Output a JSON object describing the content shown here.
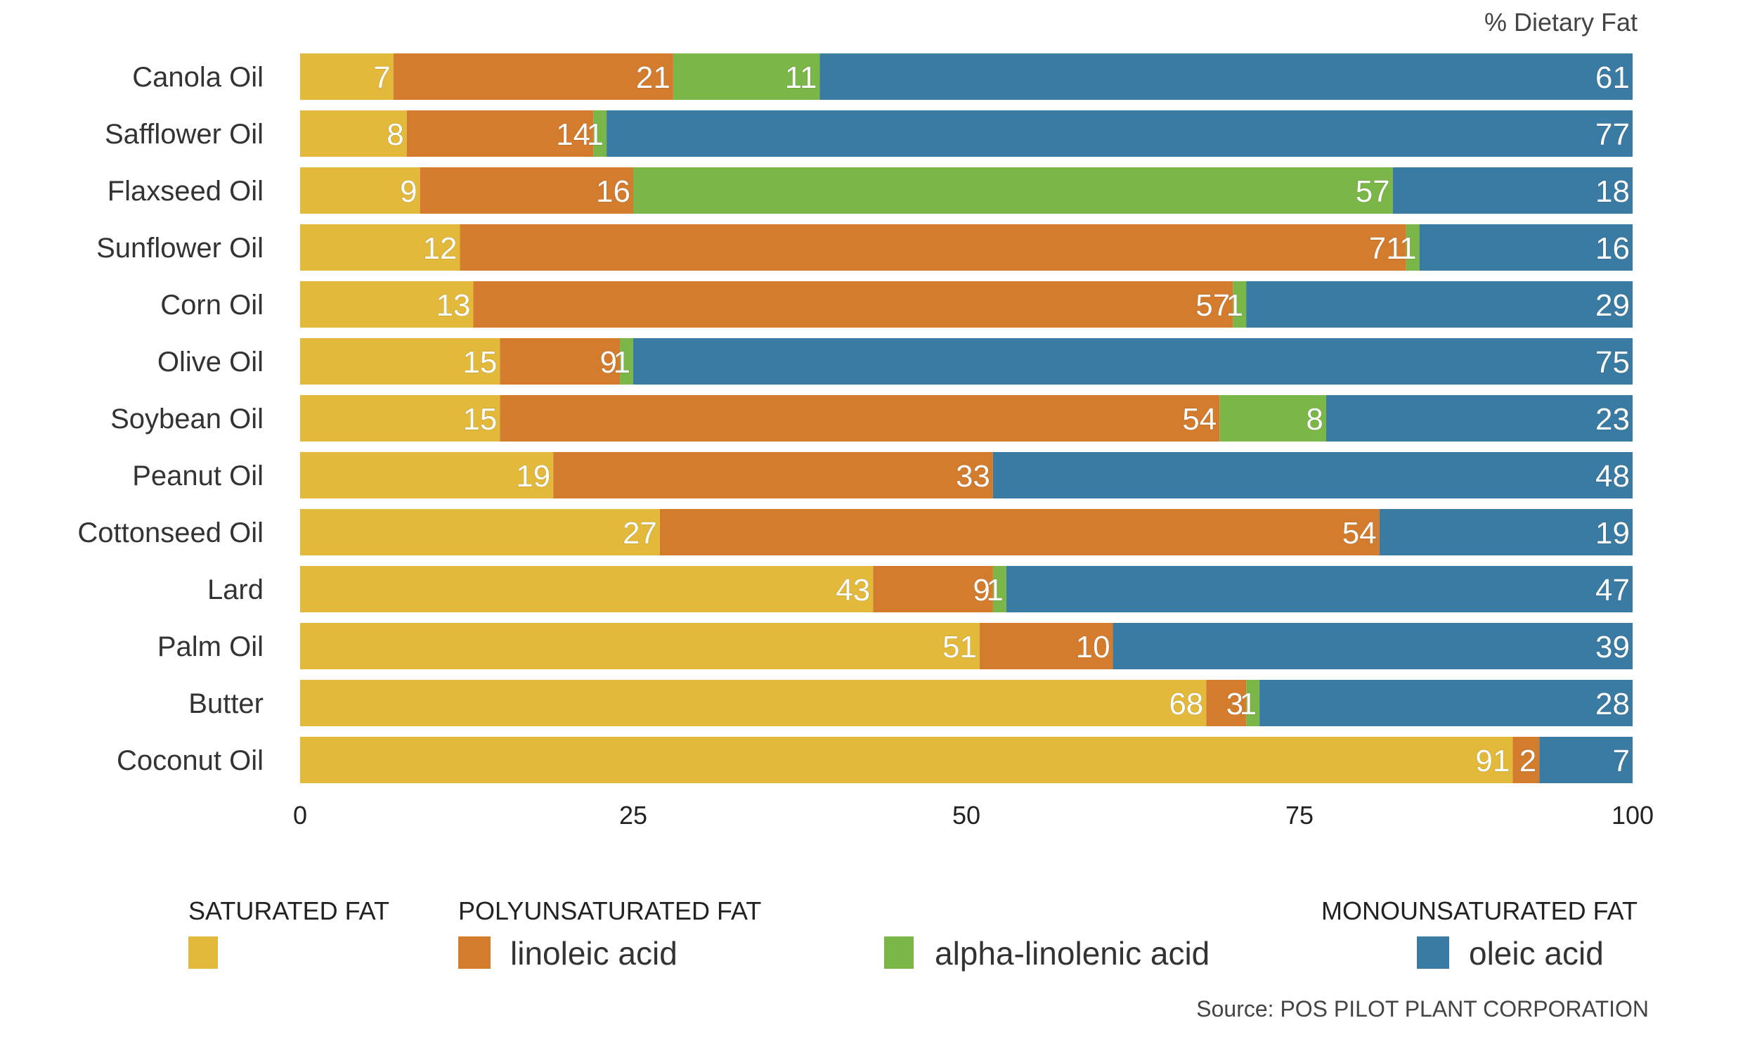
{
  "chart_data": {
    "type": "bar",
    "orientation": "horizontal",
    "stacked": true,
    "unit_label": "% Dietary Fat",
    "categories": [
      "Canola Oil",
      "Safflower Oil",
      "Flaxseed Oil",
      "Sunflower Oil",
      "Corn Oil",
      "Olive Oil",
      "Soybean Oil",
      "Peanut Oil",
      "Cottonseed Oil",
      "Lard",
      "Palm Oil",
      "Butter",
      "Coconut Oil"
    ],
    "series": [
      {
        "name": "saturated fat",
        "color": "#E3B93C",
        "values": [
          7,
          8,
          9,
          12,
          13,
          15,
          15,
          19,
          27,
          43,
          51,
          68,
          91
        ]
      },
      {
        "name": "linoleic acid",
        "color": "#D47C2E",
        "values": [
          21,
          14,
          16,
          71,
          57,
          9,
          54,
          33,
          54,
          9,
          10,
          3,
          2
        ]
      },
      {
        "name": "alpha-linolenic acid",
        "color": "#7AB648",
        "values": [
          11,
          1,
          57,
          1,
          1,
          1,
          8,
          0,
          0,
          1,
          0,
          1,
          0
        ]
      },
      {
        "name": "oleic acid",
        "color": "#3A7BA4",
        "values": [
          61,
          77,
          18,
          16,
          29,
          75,
          23,
          48,
          19,
          47,
          39,
          28,
          7
        ]
      }
    ],
    "xlim": [
      0,
      100
    ],
    "xticks": [
      "0",
      "25",
      "50",
      "75",
      "100"
    ],
    "legend": {
      "groups": [
        "SATURATED FAT",
        "POLYUNSATURATED FAT",
        "MONOUNSATURATED FAT"
      ],
      "items": [
        "linoleic acid",
        "alpha-linolenic acid",
        "oleic acid"
      ],
      "placement": "bottom"
    },
    "source": "Source: POS PILOT PLANT CORPORATION"
  }
}
